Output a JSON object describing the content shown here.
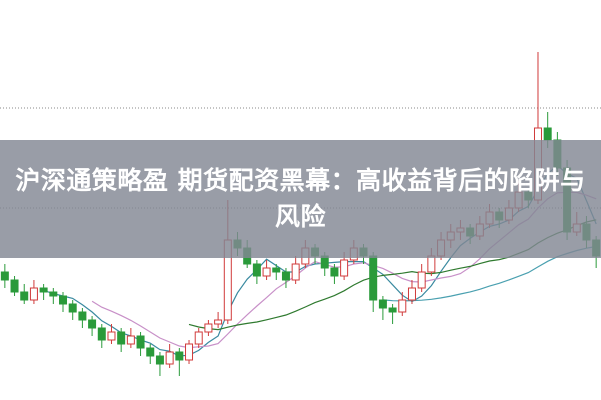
{
  "title": "沪深通策略盈 期货配资黑幕：高收益背后的陷阱与风险",
  "chart_data": {
    "type": "candlestick",
    "title": "",
    "xlabel": "",
    "ylabel": "",
    "ylim": [
      0,
      100
    ],
    "grid": "dotted horizontal",
    "ohlc": [
      [
        32,
        34,
        28,
        30
      ],
      [
        30,
        31,
        26,
        27
      ],
      [
        27,
        29,
        24,
        25
      ],
      [
        25,
        30,
        24,
        28
      ],
      [
        28,
        29,
        25,
        27
      ],
      [
        27,
        28,
        24,
        26
      ],
      [
        26,
        27,
        22,
        24
      ],
      [
        24,
        25,
        20,
        22
      ],
      [
        22,
        23,
        18,
        20
      ],
      [
        20,
        21,
        16,
        18
      ],
      [
        18,
        19,
        13,
        15
      ],
      [
        15,
        19,
        14,
        17
      ],
      [
        17,
        18,
        12,
        14
      ],
      [
        14,
        18,
        13,
        16
      ],
      [
        16,
        17,
        11,
        13
      ],
      [
        13,
        14,
        9,
        11
      ],
      [
        11,
        12,
        6,
        9
      ],
      [
        9,
        14,
        8,
        12
      ],
      [
        12,
        13,
        6,
        10
      ],
      [
        10,
        15,
        9,
        14
      ],
      [
        14,
        18,
        13,
        17
      ],
      [
        17,
        20,
        16,
        19
      ],
      [
        19,
        22,
        18,
        20
      ],
      [
        20,
        50,
        19,
        40
      ],
      [
        40,
        42,
        36,
        38
      ],
      [
        38,
        40,
        33,
        34
      ],
      [
        34,
        35,
        29,
        31
      ],
      [
        31,
        35,
        30,
        33
      ],
      [
        33,
        34,
        30,
        32
      ],
      [
        32,
        33,
        28,
        30
      ],
      [
        30,
        36,
        29,
        34
      ],
      [
        34,
        40,
        33,
        38
      ],
      [
        38,
        39,
        34,
        36
      ],
      [
        36,
        37,
        31,
        33
      ],
      [
        33,
        34,
        29,
        31
      ],
      [
        31,
        37,
        30,
        35
      ],
      [
        35,
        40,
        34,
        38
      ],
      [
        38,
        39,
        34,
        36
      ],
      [
        36,
        37,
        22,
        25
      ],
      [
        25,
        26,
        20,
        23
      ],
      [
        23,
        24,
        19,
        22
      ],
      [
        22,
        27,
        21,
        25
      ],
      [
        25,
        30,
        24,
        28
      ],
      [
        28,
        34,
        27,
        32
      ],
      [
        32,
        38,
        31,
        36
      ],
      [
        36,
        42,
        35,
        40
      ],
      [
        40,
        44,
        38,
        42
      ],
      [
        42,
        45,
        40,
        43
      ],
      [
        43,
        44,
        39,
        41
      ],
      [
        41,
        46,
        40,
        44
      ],
      [
        44,
        49,
        43,
        47
      ],
      [
        47,
        48,
        43,
        45
      ],
      [
        45,
        50,
        44,
        48
      ],
      [
        48,
        55,
        47,
        52
      ],
      [
        52,
        53,
        48,
        50
      ],
      [
        50,
        87,
        49,
        68
      ],
      [
        68,
        72,
        63,
        65
      ],
      [
        65,
        67,
        56,
        58
      ],
      [
        58,
        60,
        40,
        42
      ],
      [
        42,
        47,
        41,
        44
      ],
      [
        44,
        46,
        38,
        40
      ],
      [
        40,
        41,
        33,
        36
      ]
    ],
    "moving_averages": [
      {
        "period": 5,
        "color": "#3a8aa0"
      },
      {
        "period": 10,
        "color": "#c890c8"
      },
      {
        "period": 20,
        "color": "#2f7a2f"
      },
      {
        "period": 40,
        "color": "#4aa0b0"
      }
    ],
    "colors": {
      "up": "#d03a3a",
      "down": "#2a9a3a",
      "grid": "#888888"
    }
  }
}
